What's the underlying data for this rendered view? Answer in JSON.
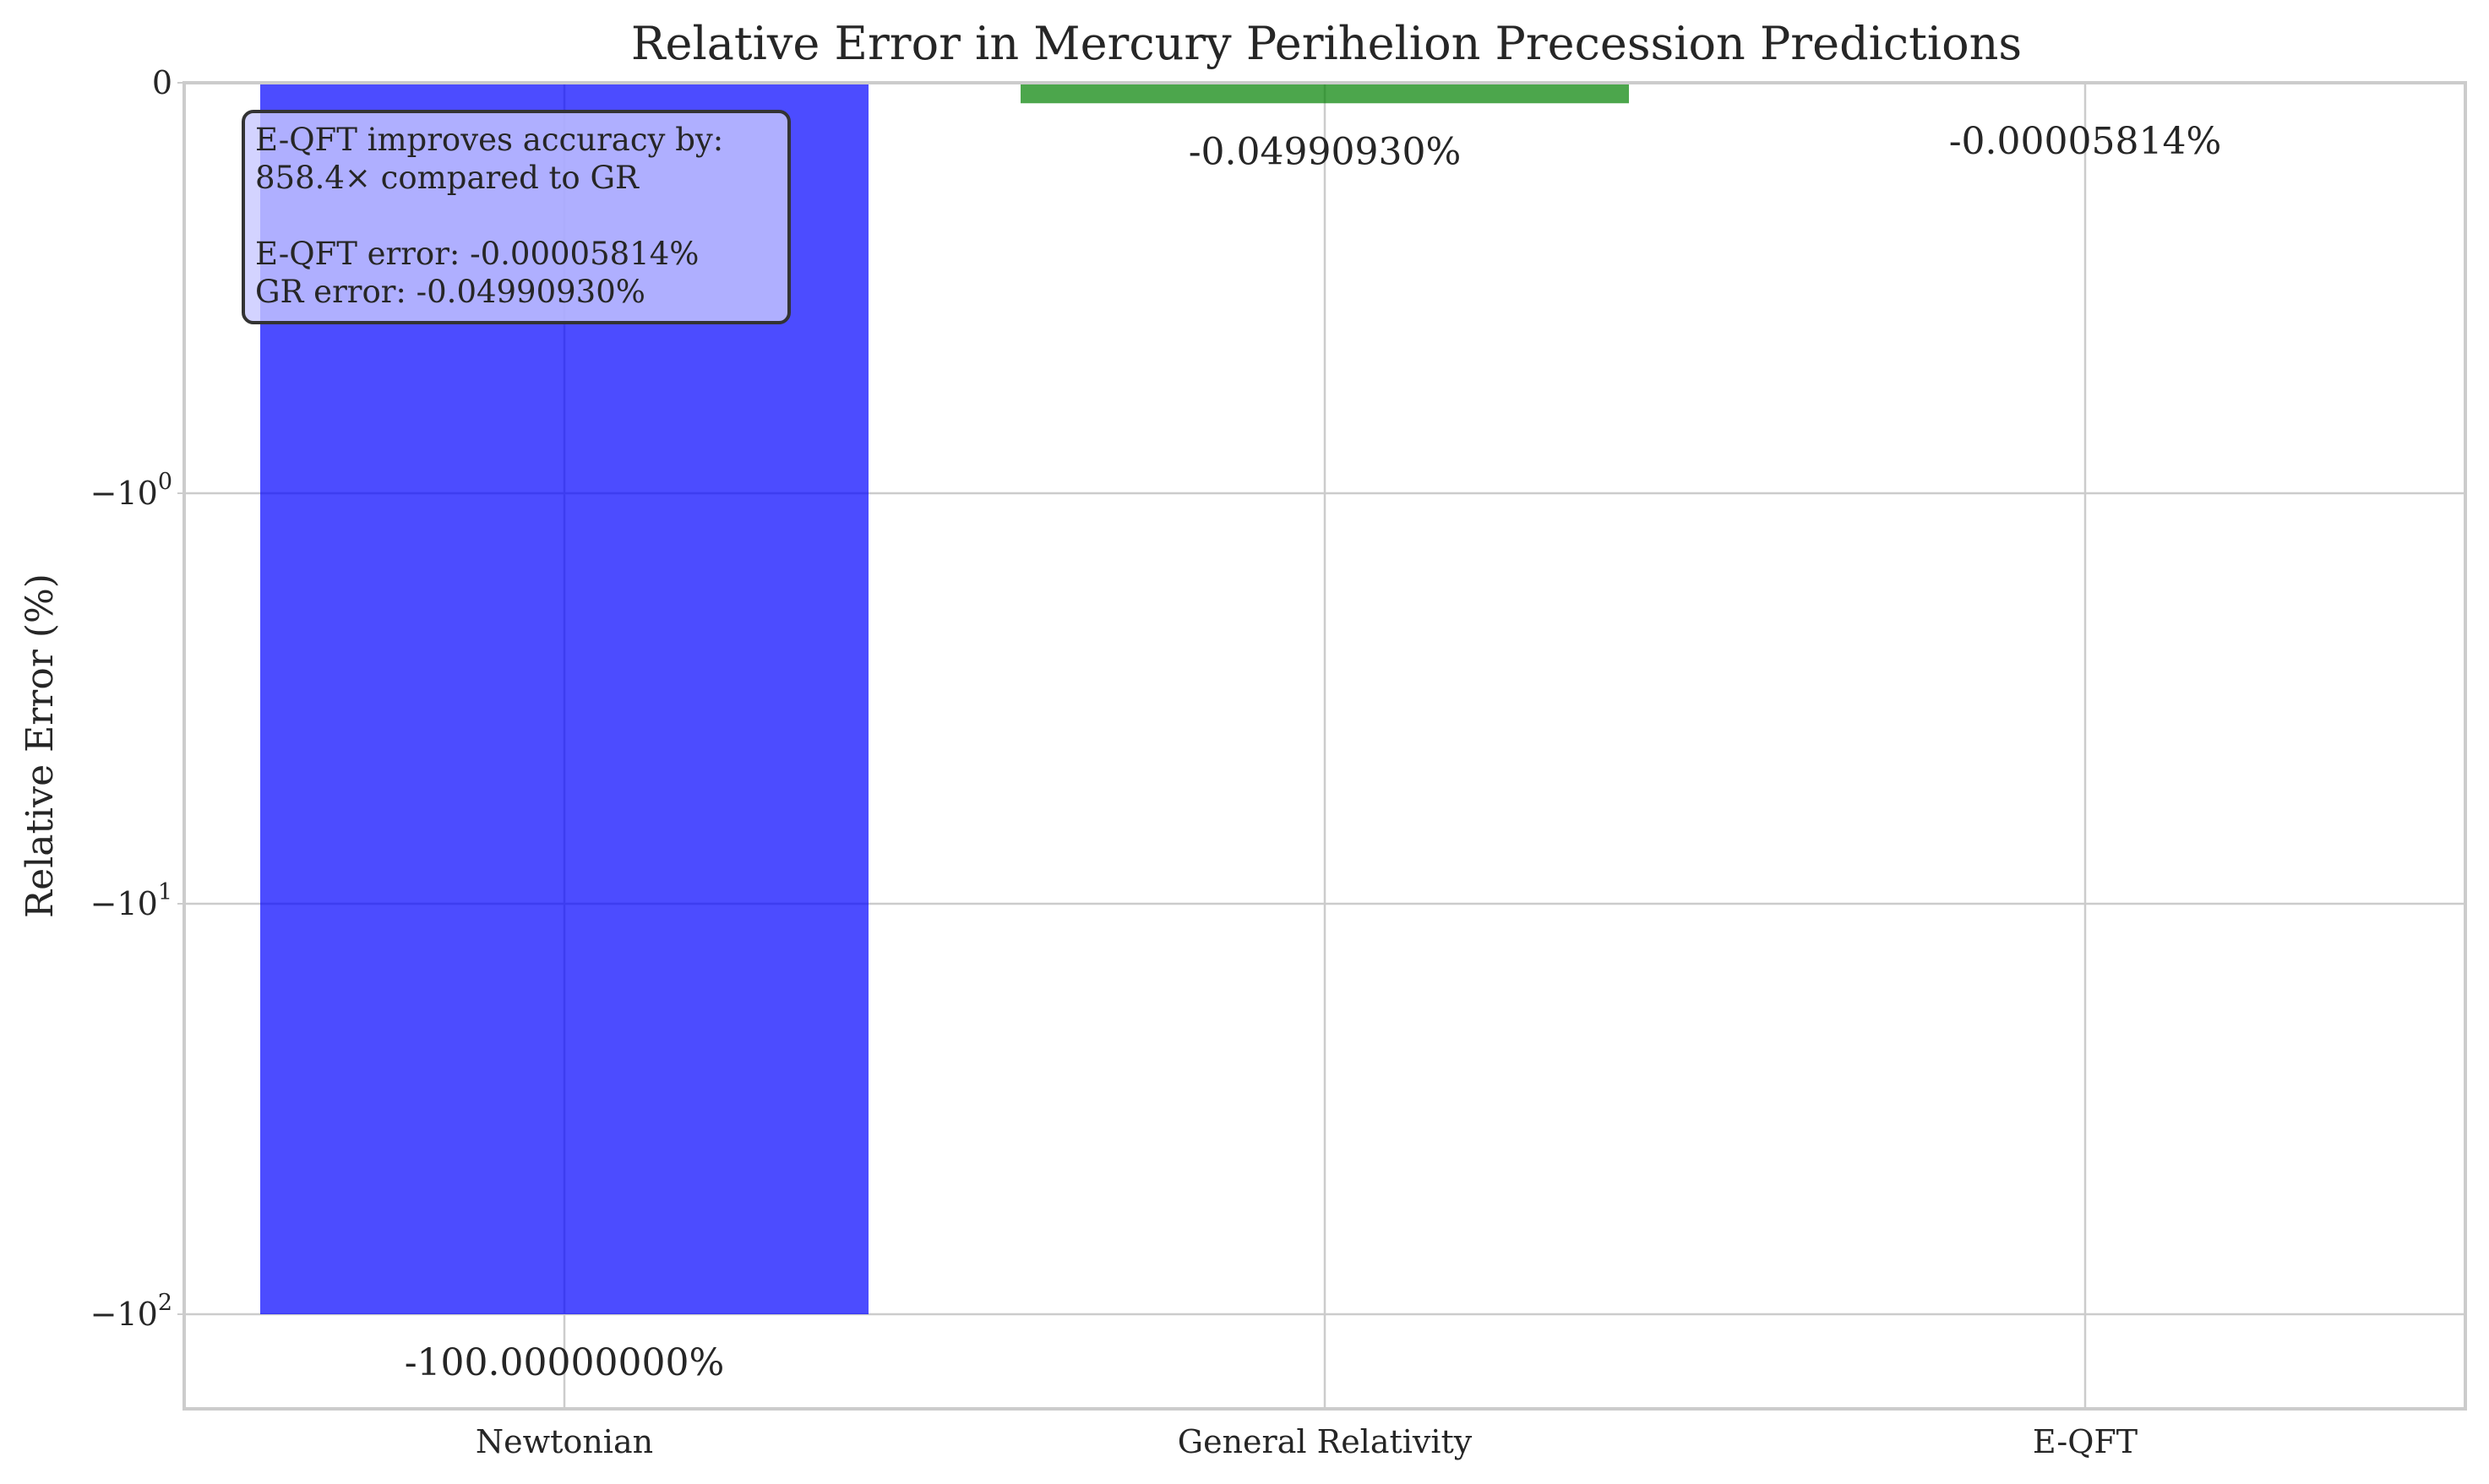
{
  "chart_data": {
    "type": "bar",
    "title": "Relative Error in Mercury Perihelion Precession Predictions",
    "xlabel": "",
    "ylabel": "Relative Error (%)",
    "yscale": "symlog",
    "symlog_linthresh": 1,
    "ylim": [
      -170,
      0
    ],
    "grid": true,
    "categories": [
      "Newtonian",
      "General Relativity",
      "E-QFT"
    ],
    "values": [
      -100.0,
      -0.0499093,
      -5.814e-05
    ],
    "bar_colors": [
      "#0000ff",
      "#008000",
      "#ff0000"
    ],
    "bar_labels": [
      "-100.00000000%",
      "-0.04990930%",
      "-0.00005814%"
    ],
    "y_ticks": [
      {
        "value": 0,
        "base": "0",
        "exp": ""
      },
      {
        "value": -1,
        "base": "−10",
        "exp": "0"
      },
      {
        "value": -10,
        "base": "−10",
        "exp": "1"
      },
      {
        "value": -100,
        "base": "−10",
        "exp": "2"
      }
    ],
    "annotation": {
      "lines": [
        "E-QFT improves accuracy by:",
        "858.4× compared to GR",
        "",
        "E-QFT error: -0.00005814%",
        "GR error: -0.04990930%"
      ],
      "background": "#c8c8ff",
      "placement": "top-left"
    }
  }
}
